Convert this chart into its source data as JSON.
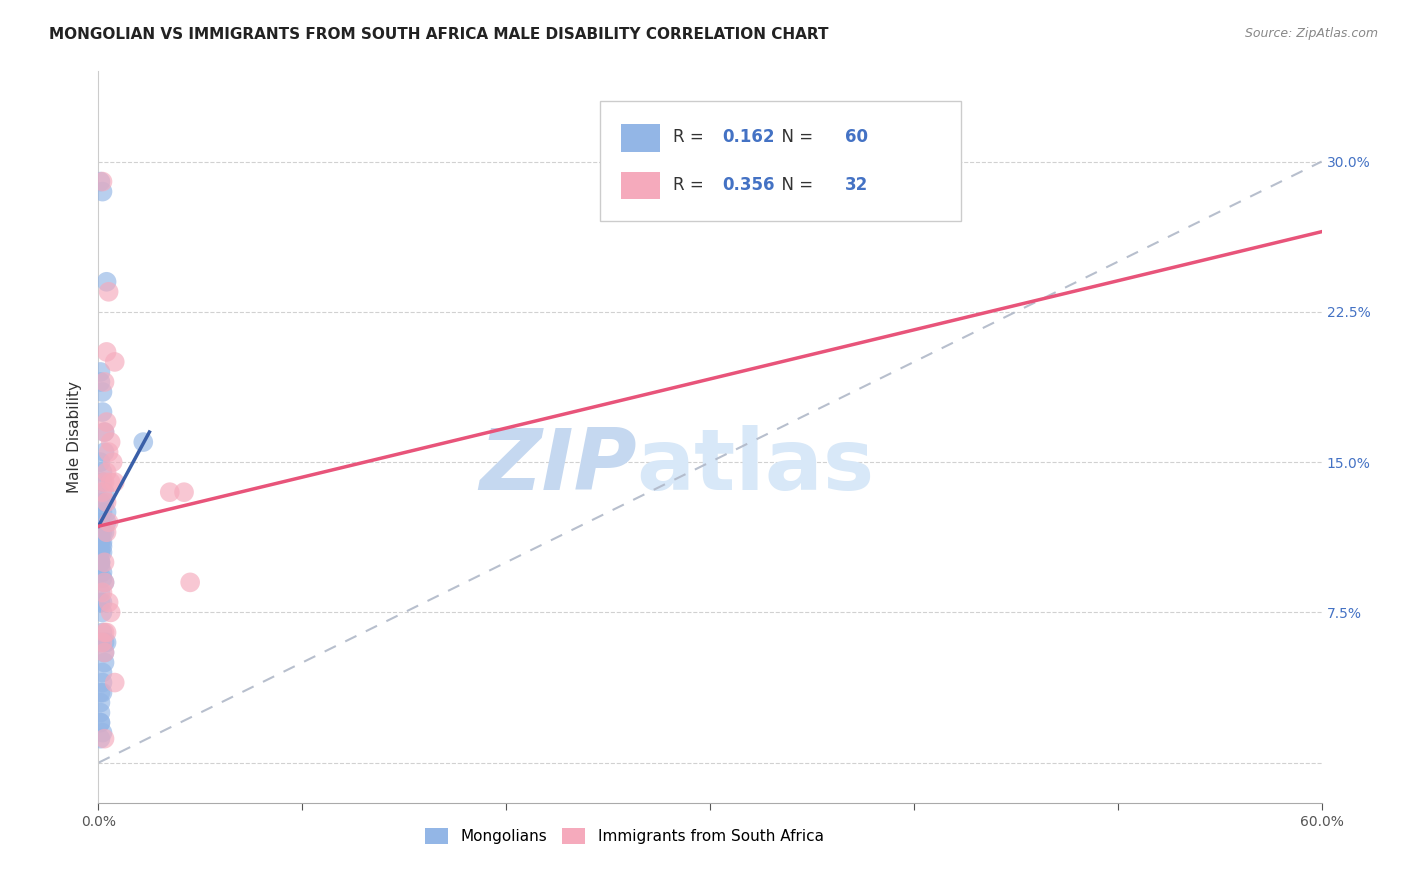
{
  "title": "MONGOLIAN VS IMMIGRANTS FROM SOUTH AFRICA MALE DISABILITY CORRELATION CHART",
  "source": "Source: ZipAtlas.com",
  "ylabel": "Male Disability",
  "xlim": [
    0.0,
    0.6
  ],
  "ylim": [
    -0.02,
    0.345
  ],
  "xticks": [
    0.0,
    0.1,
    0.2,
    0.3,
    0.4,
    0.5,
    0.6
  ],
  "xticklabels_shown": [
    "0.0%",
    "",
    "",
    "",
    "",
    "",
    "60.0%"
  ],
  "yticks": [
    0.0,
    0.075,
    0.15,
    0.225,
    0.3
  ],
  "yticklabels_right": [
    "",
    "7.5%",
    "15.0%",
    "22.5%",
    "30.0%"
  ],
  "mongolian_R": 0.162,
  "mongolian_N": 60,
  "sa_R": 0.356,
  "sa_N": 32,
  "mongolian_color": "#93b6e6",
  "sa_color": "#f5aabc",
  "mongolian_trend_color": "#3a5fa8",
  "sa_trend_color": "#e8547a",
  "ref_line_color": "#b0b8c8",
  "watermark_zip": "ZIP",
  "watermark_atlas": "atlas",
  "title_fontsize": 11,
  "mongolian_x": [
    0.001,
    0.002,
    0.004,
    0.001,
    0.001,
    0.002,
    0.002,
    0.003,
    0.003,
    0.001,
    0.002,
    0.002,
    0.003,
    0.003,
    0.004,
    0.004,
    0.001,
    0.002,
    0.001,
    0.001,
    0.002,
    0.002,
    0.001,
    0.001,
    0.002,
    0.001,
    0.003,
    0.002,
    0.001,
    0.001,
    0.001,
    0.002,
    0.002,
    0.003,
    0.001,
    0.002,
    0.001,
    0.001,
    0.001,
    0.001,
    0.001,
    0.001,
    0.002,
    0.002,
    0.003,
    0.004,
    0.003,
    0.002,
    0.001,
    0.001,
    0.002,
    0.001,
    0.001,
    0.002,
    0.001,
    0.001,
    0.003,
    0.002,
    0.001,
    0.022
  ],
  "mongolian_y": [
    0.29,
    0.285,
    0.24,
    0.195,
    0.19,
    0.185,
    0.175,
    0.165,
    0.155,
    0.15,
    0.145,
    0.14,
    0.135,
    0.13,
    0.125,
    0.12,
    0.118,
    0.115,
    0.113,
    0.11,
    0.108,
    0.105,
    0.1,
    0.13,
    0.125,
    0.12,
    0.115,
    0.11,
    0.105,
    0.1,
    0.098,
    0.095,
    0.092,
    0.09,
    0.085,
    0.08,
    0.12,
    0.115,
    0.11,
    0.105,
    0.1,
    0.08,
    0.075,
    0.065,
    0.06,
    0.06,
    0.055,
    0.04,
    0.03,
    0.025,
    0.035,
    0.02,
    0.02,
    0.015,
    0.012,
    0.06,
    0.05,
    0.045,
    0.035,
    0.16
  ],
  "sa_x": [
    0.002,
    0.005,
    0.004,
    0.008,
    0.003,
    0.004,
    0.003,
    0.006,
    0.005,
    0.007,
    0.004,
    0.003,
    0.002,
    0.004,
    0.006,
    0.008,
    0.003,
    0.002,
    0.005,
    0.006,
    0.003,
    0.004,
    0.002,
    0.003,
    0.005,
    0.004,
    0.003,
    0.035,
    0.042,
    0.008,
    0.045,
    0.003
  ],
  "sa_y": [
    0.29,
    0.235,
    0.205,
    0.2,
    0.19,
    0.17,
    0.165,
    0.16,
    0.155,
    0.15,
    0.145,
    0.14,
    0.135,
    0.13,
    0.14,
    0.14,
    0.09,
    0.085,
    0.08,
    0.075,
    0.065,
    0.065,
    0.06,
    0.055,
    0.12,
    0.115,
    0.1,
    0.135,
    0.135,
    0.04,
    0.09,
    0.012
  ],
  "mongolian_trend_x": [
    0.0,
    0.025
  ],
  "mongolian_trend_y": [
    0.118,
    0.165
  ],
  "sa_trend_x": [
    0.0,
    0.6
  ],
  "sa_trend_y": [
    0.118,
    0.265
  ],
  "ref_line_x": [
    0.0,
    0.6
  ],
  "ref_line_y": [
    0.0,
    0.3
  ]
}
